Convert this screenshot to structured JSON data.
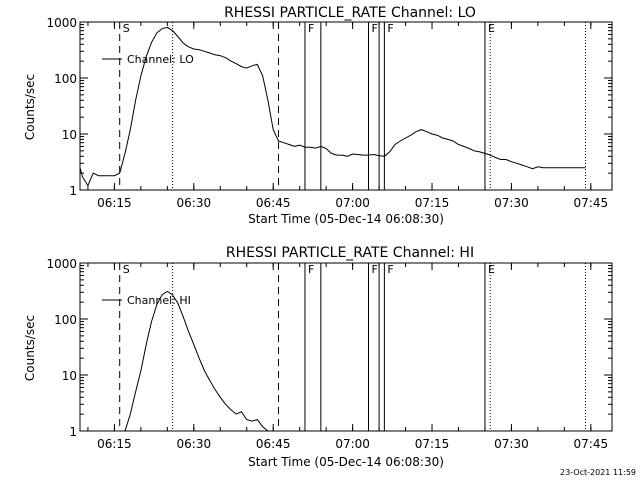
{
  "chart_data": [
    {
      "type": "line",
      "title": "RHESSI PARTICLE_RATE Channel: LO",
      "xlabel": "Start Time (05-Dec-14 06:08:30)",
      "ylabel": "Counts/sec",
      "yscale": "log",
      "ylim": [
        1,
        1000
      ],
      "xlim": [
        "06:08:30",
        "07:49:00"
      ],
      "xticks": [
        "06:15",
        "06:30",
        "06:45",
        "07:00",
        "07:15",
        "07:30",
        "07:45"
      ],
      "yticks": [
        "1",
        "10",
        "100",
        "1000"
      ],
      "grid": false,
      "legend": {
        "position": "top-left",
        "entries": [
          "Channel: LO"
        ]
      },
      "markers": {
        "dashed": [
          "06:16",
          "06:46"
        ],
        "dotted": [
          "06:26",
          "07:26",
          "07:44"
        ],
        "solid": [
          "06:51",
          "06:54",
          "07:03",
          "07:05",
          "07:06",
          "07:25"
        ],
        "labels": [
          {
            "text": "S",
            "at": "06:16"
          },
          {
            "text": "F",
            "at": "06:51"
          },
          {
            "text": "F",
            "at": "07:03"
          },
          {
            "text": "F",
            "at": "07:06"
          },
          {
            "text": "E",
            "at": "07:25"
          }
        ]
      },
      "series": [
        {
          "x": [
            "06:08:30",
            "06:09:00",
            "06:10:00",
            "06:11:00",
            "06:12:00",
            "06:13:00",
            "06:14:00",
            "06:15:00",
            "06:16:00",
            "06:17:00",
            "06:18:00",
            "06:19:00",
            "06:20:00",
            "06:21:00",
            "06:22:00",
            "06:23:00",
            "06:24:00",
            "06:25:00",
            "06:26:00",
            "06:27:00",
            "06:28:00",
            "06:29:00",
            "06:30:00",
            "06:31:00",
            "06:32:00",
            "06:33:00",
            "06:34:00",
            "06:35:00",
            "06:36:00",
            "06:37:00",
            "06:38:00",
            "06:39:00",
            "06:40:00",
            "06:41:00",
            "06:42:00",
            "06:43:00",
            "06:44:00",
            "06:45:00",
            "06:46:00",
            "06:47:00",
            "06:48:00",
            "06:49:00",
            "06:50:00",
            "06:51:00",
            "06:52:00",
            "06:53:00",
            "06:54:00",
            "06:55:00",
            "06:56:00",
            "06:57:00",
            "06:58:00",
            "06:59:00",
            "07:00:00",
            "07:01:00",
            "07:02:00",
            "07:03:00",
            "07:04:00",
            "07:05:00",
            "07:06:00",
            "07:07:00",
            "07:08:00",
            "07:09:00",
            "07:10:00",
            "07:11:00",
            "07:12:00",
            "07:13:00",
            "07:14:00",
            "07:15:00",
            "07:16:00",
            "07:17:00",
            "07:18:00",
            "07:19:00",
            "07:20:00",
            "07:21:00",
            "07:22:00",
            "07:23:00",
            "07:24:00",
            "07:25:00",
            "07:26:00",
            "07:27:00",
            "07:28:00",
            "07:29:00",
            "07:30:00",
            "07:31:00",
            "07:32:00",
            "07:33:00",
            "07:34:00",
            "07:35:00",
            "07:36:00",
            "07:37:00",
            "07:38:00",
            "07:39:00",
            "07:40:00",
            "07:41:00",
            "07:42:00",
            "07:43:00",
            "07:44:00"
          ],
          "values": [
            2.5,
            1.7,
            1.2,
            2.0,
            1.8,
            1.8,
            1.8,
            1.8,
            2.0,
            4.5,
            12,
            40,
            110,
            240,
            430,
            640,
            760,
            800,
            700,
            550,
            420,
            360,
            330,
            320,
            300,
            280,
            260,
            250,
            230,
            200,
            180,
            160,
            150,
            165,
            175,
            110,
            40,
            12,
            7.5,
            7,
            6.5,
            6,
            6.3,
            5.8,
            5.8,
            5.6,
            6,
            5.5,
            4.5,
            4.2,
            4.2,
            4,
            4.4,
            4.3,
            4.2,
            4.2,
            4.3,
            4.1,
            4,
            4.8,
            6.5,
            7.5,
            8.5,
            9.5,
            11,
            12,
            11,
            10,
            9.5,
            8.5,
            8,
            7.5,
            6.5,
            6,
            5.5,
            5,
            4.8,
            4.5,
            4.2,
            3.8,
            3.5,
            3.5,
            3.2,
            3,
            2.8,
            2.6,
            2.4,
            2.6,
            2.5,
            2.5,
            2.5,
            2.5,
            2.5,
            2.5,
            2.5,
            2.5,
            2.5
          ]
        }
      ]
    },
    {
      "type": "line",
      "title": "RHESSI PARTICLE_RATE Channel: HI",
      "xlabel": "Start Time (05-Dec-14 06:08:30)",
      "ylabel": "Counts/sec",
      "yscale": "log",
      "ylim": [
        1,
        1000
      ],
      "xlim": [
        "06:08:30",
        "07:49:00"
      ],
      "xticks": [
        "06:15",
        "06:30",
        "06:45",
        "07:00",
        "07:15",
        "07:30",
        "07:45"
      ],
      "yticks": [
        "1",
        "10",
        "100",
        "1000"
      ],
      "grid": false,
      "legend": {
        "position": "top-left",
        "entries": [
          "Channel: HI"
        ]
      },
      "markers": {
        "dashed": [
          "06:16",
          "06:46"
        ],
        "dotted": [
          "06:26",
          "07:26",
          "07:44"
        ],
        "solid": [
          "06:51",
          "06:54",
          "07:03",
          "07:05",
          "07:06",
          "07:25"
        ],
        "labels": [
          {
            "text": "S",
            "at": "06:16"
          },
          {
            "text": "F",
            "at": "06:51"
          },
          {
            "text": "F",
            "at": "07:03"
          },
          {
            "text": "F",
            "at": "07:06"
          },
          {
            "text": "E",
            "at": "07:25"
          }
        ]
      },
      "series": [
        {
          "x": [
            "06:17:00",
            "06:18:00",
            "06:19:00",
            "06:20:00",
            "06:21:00",
            "06:22:00",
            "06:23:00",
            "06:24:00",
            "06:25:00",
            "06:26:00",
            "06:27:00",
            "06:28:00",
            "06:29:00",
            "06:30:00",
            "06:31:00",
            "06:32:00",
            "06:33:00",
            "06:34:00",
            "06:35:00",
            "06:36:00",
            "06:37:00",
            "06:38:00",
            "06:39:00",
            "06:40:00",
            "06:41:00",
            "06:42:00",
            "06:43:00",
            "06:44:00"
          ],
          "values": [
            1,
            2,
            5,
            12,
            35,
            90,
            180,
            270,
            310,
            270,
            190,
            110,
            60,
            35,
            20,
            12,
            8,
            5.5,
            4,
            3,
            2.4,
            2,
            2.2,
            1.6,
            1.5,
            1.6,
            1.2,
            1
          ]
        }
      ]
    },
    {
      "stamp": "23-Oct-2021 11:59"
    }
  ]
}
